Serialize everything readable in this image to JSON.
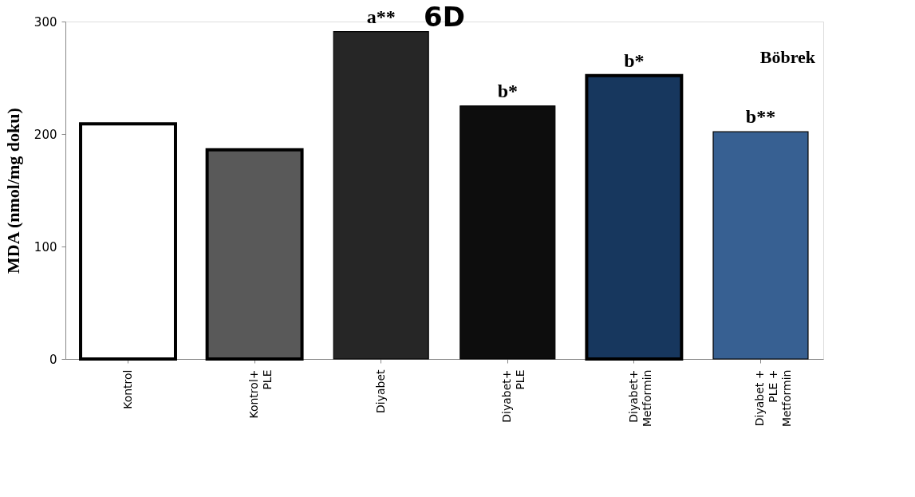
{
  "chart_data": {
    "type": "bar",
    "title": "6D",
    "ylabel": "MDA (nmol/mg doku)",
    "categories": [
      "Kontrol",
      "Kontrol+\nPLE",
      "Diyabet",
      "Diyabet+\nPLE",
      "Diyabet+\nMetformin",
      "Diyabet +\nPLE +\nMetformin"
    ],
    "values": [
      209,
      186,
      291,
      225,
      252,
      202
    ],
    "colors": [
      "#ffffff",
      "#595959",
      "#262626",
      "#0d0d0d",
      "#17375e",
      "#376092"
    ],
    "ylim": [
      0,
      300
    ],
    "yticks": [
      0,
      100,
      200,
      300
    ],
    "grid": false,
    "annotations": [
      {
        "text": "a**",
        "x": "Diyabet",
        "y": 291
      },
      {
        "text": "b*",
        "x": "Diyabet+\nPLE",
        "y": 225
      },
      {
        "text": "b*",
        "x": "Diyabet+\nMetformin",
        "y": 252
      },
      {
        "text": "b**",
        "x": "Diyabet +\nPLE +\nMetformin",
        "y": 202
      },
      "Böbrek"
    ]
  }
}
